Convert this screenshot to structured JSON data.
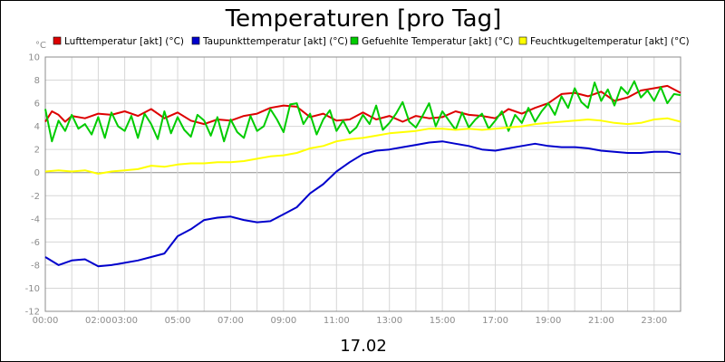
{
  "chart_data": {
    "type": "line",
    "title": "Temperaturen [pro Tag]",
    "date_label": "17.02",
    "y_unit": "°C",
    "ylim": [
      -12,
      10
    ],
    "yticks": [
      10,
      8,
      6,
      4,
      2,
      0,
      -2,
      -4,
      -6,
      -8,
      -10,
      -12
    ],
    "xlim": [
      0,
      24
    ],
    "xticks": [
      {
        "h": 0,
        "label": "00:00"
      },
      {
        "h": 2,
        "label": "02:00"
      },
      {
        "h": 3,
        "label": "03:00"
      },
      {
        "h": 5,
        "label": "05:00"
      },
      {
        "h": 7,
        "label": "07:00"
      },
      {
        "h": 9,
        "label": "09:00"
      },
      {
        "h": 11,
        "label": "11:00"
      },
      {
        "h": 13,
        "label": "13:00"
      },
      {
        "h": 15,
        "label": "15:00"
      },
      {
        "h": 17,
        "label": "17:00"
      },
      {
        "h": 19,
        "label": "19:00"
      },
      {
        "h": 21,
        "label": "21:00"
      },
      {
        "h": 23,
        "label": "23:00"
      }
    ],
    "grid": true,
    "legend_position": "top",
    "series": [
      {
        "name": "Lufttemperatur [akt] (°C)",
        "color": "#dd0000",
        "x": [
          0,
          0.25,
          0.5,
          0.75,
          1,
          1.5,
          2,
          2.5,
          3,
          3.5,
          4,
          4.5,
          5,
          5.5,
          6,
          6.5,
          7,
          7.5,
          8,
          8.5,
          9,
          9.5,
          10,
          10.5,
          11,
          11.5,
          12,
          12.5,
          13,
          13.5,
          14,
          14.5,
          15,
          15.5,
          16,
          16.5,
          17,
          17.5,
          18,
          18.5,
          19,
          19.5,
          20,
          20.5,
          21,
          21.5,
          22,
          22.5,
          23,
          23.5,
          24
        ],
        "values": [
          4.4,
          5.3,
          5.0,
          4.4,
          4.9,
          4.7,
          5.1,
          5.0,
          5.3,
          4.9,
          5.5,
          4.7,
          5.2,
          4.5,
          4.2,
          4.6,
          4.5,
          4.9,
          5.1,
          5.6,
          5.8,
          5.7,
          4.8,
          5.1,
          4.5,
          4.6,
          5.2,
          4.6,
          4.9,
          4.4,
          4.9,
          4.7,
          4.8,
          5.3,
          5.0,
          4.9,
          4.7,
          5.5,
          5.1,
          5.6,
          6.0,
          6.8,
          6.9,
          6.6,
          7.0,
          6.2,
          6.5,
          7.1,
          7.3,
          7.5,
          6.9
        ]
      },
      {
        "name": "Taupunkttemperatur [akt] (°C)",
        "color": "#0000cc",
        "x": [
          0,
          0.5,
          1,
          1.5,
          2,
          2.5,
          3,
          3.5,
          4,
          4.5,
          5,
          5.5,
          6,
          6.5,
          7,
          7.5,
          8,
          8.5,
          9,
          9.5,
          10,
          10.5,
          11,
          11.5,
          12,
          12.5,
          13,
          13.5,
          14,
          14.5,
          15,
          15.5,
          16,
          16.5,
          17,
          17.5,
          18,
          18.5,
          19,
          19.5,
          20,
          20.5,
          21,
          21.5,
          22,
          22.5,
          23,
          23.5,
          24
        ],
        "values": [
          -7.3,
          -8.0,
          -7.6,
          -7.5,
          -8.1,
          -8.0,
          -7.8,
          -7.6,
          -7.3,
          -7.0,
          -5.5,
          -4.9,
          -4.1,
          -3.9,
          -3.8,
          -4.1,
          -4.3,
          -4.2,
          -3.6,
          -3.0,
          -1.8,
          -1.0,
          0.1,
          0.9,
          1.6,
          1.9,
          2.0,
          2.2,
          2.4,
          2.6,
          2.7,
          2.5,
          2.3,
          2.0,
          1.9,
          2.1,
          2.3,
          2.5,
          2.3,
          2.2,
          2.2,
          2.1,
          1.9,
          1.8,
          1.7,
          1.7,
          1.8,
          1.8,
          1.6
        ]
      },
      {
        "name": "Gefuehlte Temperatur [akt] (°C)",
        "color": "#00cc00",
        "x": [
          0,
          0.25,
          0.5,
          0.75,
          1,
          1.25,
          1.5,
          1.75,
          2,
          2.25,
          2.5,
          2.75,
          3,
          3.25,
          3.5,
          3.75,
          4,
          4.25,
          4.5,
          4.75,
          5,
          5.25,
          5.5,
          5.75,
          6,
          6.25,
          6.5,
          6.75,
          7,
          7.25,
          7.5,
          7.75,
          8,
          8.25,
          8.5,
          8.75,
          9,
          9.25,
          9.5,
          9.75,
          10,
          10.25,
          10.5,
          10.75,
          11,
          11.25,
          11.5,
          11.75,
          12,
          12.25,
          12.5,
          12.75,
          13,
          13.25,
          13.5,
          13.75,
          14,
          14.25,
          14.5,
          14.75,
          15,
          15.25,
          15.5,
          15.75,
          16,
          16.25,
          16.5,
          16.75,
          17,
          17.25,
          17.5,
          17.75,
          18,
          18.25,
          18.5,
          18.75,
          19,
          19.25,
          19.5,
          19.75,
          20,
          20.25,
          20.5,
          20.75,
          21,
          21.25,
          21.5,
          21.75,
          22,
          22.25,
          22.5,
          22.75,
          23,
          23.25,
          23.5,
          23.75,
          24
        ],
        "values": [
          5.5,
          2.7,
          4.5,
          3.6,
          5.0,
          3.8,
          4.2,
          3.3,
          4.8,
          3.0,
          5.2,
          4.0,
          3.6,
          4.9,
          3.0,
          5.1,
          4.2,
          2.9,
          5.3,
          3.4,
          4.8,
          3.7,
          3.1,
          5.0,
          4.5,
          3.2,
          4.8,
          2.7,
          4.6,
          3.5,
          3.0,
          4.9,
          3.6,
          4.0,
          5.5,
          4.6,
          3.5,
          5.9,
          6.0,
          4.2,
          5.1,
          3.3,
          4.6,
          5.4,
          3.6,
          4.5,
          3.4,
          3.9,
          5.0,
          4.2,
          5.8,
          3.7,
          4.3,
          5.1,
          6.1,
          4.4,
          3.9,
          4.9,
          6.0,
          4.0,
          5.3,
          4.5,
          3.7,
          5.2,
          3.9,
          4.6,
          5.1,
          3.8,
          4.5,
          5.3,
          3.6,
          5.0,
          4.3,
          5.6,
          4.4,
          5.3,
          6.0,
          5.0,
          6.6,
          5.6,
          7.3,
          6.1,
          5.6,
          7.8,
          6.2,
          7.2,
          5.8,
          7.4,
          6.8,
          7.9,
          6.5,
          7.1,
          6.2,
          7.4,
          6.0,
          6.8,
          6.7
        ]
      },
      {
        "name": "Feuchtkugeltemperatur [akt] (°C)",
        "color": "#ffff00",
        "x": [
          0,
          0.5,
          1,
          1.5,
          2,
          2.5,
          3,
          3.5,
          4,
          4.5,
          5,
          5.5,
          6,
          6.5,
          7,
          7.5,
          8,
          8.5,
          9,
          9.5,
          10,
          10.5,
          11,
          11.5,
          12,
          12.5,
          13,
          13.5,
          14,
          14.5,
          15,
          15.5,
          16,
          16.5,
          17,
          17.5,
          18,
          18.5,
          19,
          19.5,
          20,
          20.5,
          21,
          21.5,
          22,
          22.5,
          23,
          23.5,
          24
        ],
        "values": [
          0.1,
          0.2,
          0.1,
          0.2,
          -0.1,
          0.1,
          0.2,
          0.3,
          0.6,
          0.5,
          0.7,
          0.8,
          0.8,
          0.9,
          0.9,
          1.0,
          1.2,
          1.4,
          1.5,
          1.7,
          2.1,
          2.3,
          2.7,
          2.9,
          3.0,
          3.2,
          3.4,
          3.5,
          3.6,
          3.8,
          3.8,
          3.7,
          3.8,
          3.7,
          3.8,
          3.9,
          4.0,
          4.2,
          4.3,
          4.4,
          4.5,
          4.6,
          4.5,
          4.3,
          4.2,
          4.3,
          4.6,
          4.7,
          4.4
        ]
      }
    ]
  }
}
